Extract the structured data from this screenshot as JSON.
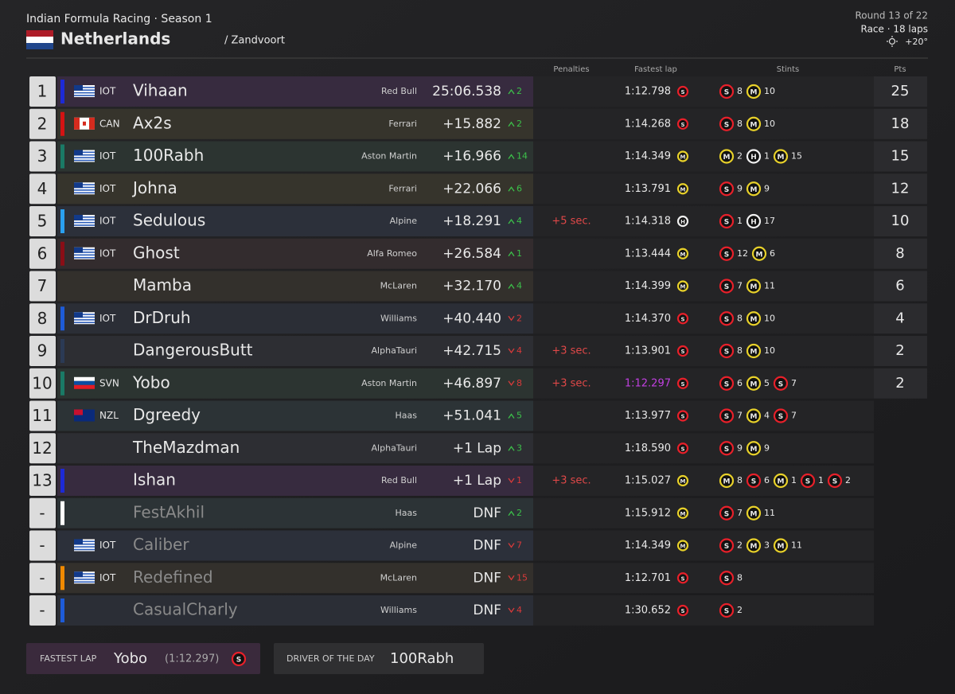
{
  "header": {
    "title": "Indian Formula Racing · Season 1",
    "country": "Netherlands",
    "circuit": "/ Zandvoort",
    "round": "Round 13 of 22",
    "session": "Race · 18 laps",
    "weather": "+20°"
  },
  "columns": {
    "penalties": "Penalties",
    "fastest_lap": "Fastest lap",
    "stints": "Stints",
    "points": "Pts"
  },
  "rows": [
    {
      "pos": 1,
      "color": "#1d2ad6",
      "nation": "IOT",
      "driver": "Vihaan",
      "team": "Red Bull",
      "time": "25:06.538",
      "dir": "up",
      "change": 2,
      "fastest_lap": "1:12.798",
      "fastest_tyre": "S",
      "stints": [
        {
          "tyre": "S",
          "laps": 8
        },
        {
          "tyre": "M",
          "laps": 10
        }
      ],
      "pts": 25
    },
    {
      "pos": 2,
      "color": "#d41313",
      "nation": "CAN",
      "driver": "Ax2s",
      "team": "Ferrari",
      "time": "+15.882",
      "dir": "up",
      "change": 2,
      "fastest_lap": "1:14.268",
      "fastest_tyre": "S",
      "stints": [
        {
          "tyre": "S",
          "laps": 8
        },
        {
          "tyre": "M",
          "laps": 10
        }
      ],
      "pts": 18
    },
    {
      "pos": 3,
      "color": "#1a7a66",
      "nation": "IOT",
      "driver": "100Rabh",
      "team": "Aston Martin",
      "time": "+16.966",
      "dir": "up",
      "change": 14,
      "fastest_lap": "1:14.349",
      "fastest_tyre": "M",
      "stints": [
        {
          "tyre": "M",
          "laps": 2
        },
        {
          "tyre": "H",
          "laps": 1
        },
        {
          "tyre": "M",
          "laps": 15
        }
      ],
      "pts": 15
    },
    {
      "pos": 4,
      "nation": "IOT",
      "driver": "Johna",
      "team": "Ferrari",
      "time": "+22.066",
      "dir": "up",
      "change": 6,
      "fastest_lap": "1:13.791",
      "fastest_tyre": "M",
      "stints": [
        {
          "tyre": "S",
          "laps": 9
        },
        {
          "tyre": "M",
          "laps": 9
        }
      ],
      "pts": 12
    },
    {
      "pos": 5,
      "color": "#2aa0f0",
      "nation": "IOT",
      "driver": "Sedulous",
      "team": "Alpine",
      "time": "+18.291",
      "dir": "up",
      "change": 4,
      "penalty": "+5 sec.",
      "fastest_lap": "1:14.318",
      "fastest_tyre": "H",
      "stints": [
        {
          "tyre": "S",
          "laps": 1
        },
        {
          "tyre": "H",
          "laps": 17
        }
      ],
      "pts": 10
    },
    {
      "pos": 6,
      "color": "#8a0e16",
      "nation": "IOT",
      "driver": "Ghost",
      "team": "Alfa Romeo",
      "time": "+26.584",
      "dir": "up",
      "change": 1,
      "fastest_lap": "1:13.444",
      "fastest_tyre": "M",
      "stints": [
        {
          "tyre": "S",
          "laps": 12
        },
        {
          "tyre": "M",
          "laps": 6
        }
      ],
      "pts": 8
    },
    {
      "pos": 7,
      "driver": "Mamba",
      "team": "McLaren",
      "time": "+32.170",
      "dir": "up",
      "change": 4,
      "fastest_lap": "1:14.399",
      "fastest_tyre": "M",
      "stints": [
        {
          "tyre": "S",
          "laps": 7
        },
        {
          "tyre": "M",
          "laps": 11
        }
      ],
      "pts": 6
    },
    {
      "pos": 8,
      "color": "#1e5bd8",
      "nation": "IOT",
      "driver": "DrDruh",
      "team": "Williams",
      "time": "+40.440",
      "dir": "down",
      "change": 2,
      "fastest_lap": "1:14.370",
      "fastest_tyre": "S",
      "stints": [
        {
          "tyre": "S",
          "laps": 8
        },
        {
          "tyre": "M",
          "laps": 10
        }
      ],
      "pts": 4
    },
    {
      "pos": 9,
      "color": "#2b3a55",
      "driver": "DangerousButt",
      "team": "AlphaTauri",
      "time": "+42.715",
      "dir": "down",
      "change": 4,
      "penalty": "+3 sec.",
      "fastest_lap": "1:13.901",
      "fastest_tyre": "S",
      "stints": [
        {
          "tyre": "S",
          "laps": 8
        },
        {
          "tyre": "M",
          "laps": 10
        }
      ],
      "pts": 2
    },
    {
      "pos": 10,
      "color": "#1a7a66",
      "nation": "SVN",
      "driver": "Yobo",
      "team": "Aston Martin",
      "time": "+46.897",
      "dir": "down",
      "change": 8,
      "penalty": "+3 sec.",
      "fastest_lap": "1:12.297",
      "fastest_tyre": "S",
      "overall_fastest": true,
      "stints": [
        {
          "tyre": "S",
          "laps": 6
        },
        {
          "tyre": "M",
          "laps": 5
        },
        {
          "tyre": "S",
          "laps": 7
        }
      ],
      "pts": 2
    },
    {
      "pos": 11,
      "nation": "NZL",
      "driver": "Dgreedy",
      "team": "Haas",
      "time": "+51.041",
      "dir": "up",
      "change": 5,
      "fastest_lap": "1:13.977",
      "fastest_tyre": "S",
      "stints": [
        {
          "tyre": "S",
          "laps": 7
        },
        {
          "tyre": "M",
          "laps": 4
        },
        {
          "tyre": "S",
          "laps": 7
        }
      ]
    },
    {
      "pos": 12,
      "driver": "TheMazdman",
      "team": "AlphaTauri",
      "time": "+1 Lap",
      "dir": "up",
      "change": 3,
      "fastest_lap": "1:18.590",
      "fastest_tyre": "S",
      "stints": [
        {
          "tyre": "S",
          "laps": 9
        },
        {
          "tyre": "M",
          "laps": 9
        }
      ]
    },
    {
      "pos": 13,
      "color": "#1d2ad6",
      "driver": "Ishan",
      "team": "Red Bull",
      "time": "+1 Lap",
      "dir": "down",
      "change": 1,
      "penalty": "+3 sec.",
      "fastest_lap": "1:15.027",
      "fastest_tyre": "M",
      "stints": [
        {
          "tyre": "M",
          "laps": 8
        },
        {
          "tyre": "S",
          "laps": 6
        },
        {
          "tyre": "M",
          "laps": 1
        },
        {
          "tyre": "S",
          "laps": 1
        },
        {
          "tyre": "S",
          "laps": 2
        }
      ]
    },
    {
      "pos": "-",
      "color": "#ffffff",
      "retired": true,
      "driver": "FestAkhil",
      "team": "Haas",
      "time": "DNF",
      "dir": "up",
      "change": 2,
      "fastest_lap": "1:15.912",
      "fastest_tyre": "M",
      "stints": [
        {
          "tyre": "S",
          "laps": 7
        },
        {
          "tyre": "M",
          "laps": 11
        }
      ]
    },
    {
      "pos": "-",
      "retired": true,
      "nation": "IOT",
      "driver": "Caliber",
      "team": "Alpine",
      "time": "DNF",
      "dir": "down",
      "change": 7,
      "fastest_lap": "1:14.349",
      "fastest_tyre": "M",
      "stints": [
        {
          "tyre": "S",
          "laps": 2
        },
        {
          "tyre": "M",
          "laps": 3
        },
        {
          "tyre": "M",
          "laps": 11
        }
      ]
    },
    {
      "pos": "-",
      "color": "#f08a00",
      "retired": true,
      "nation": "IOT",
      "driver": "Redefined",
      "team": "McLaren",
      "time": "DNF",
      "dir": "down",
      "change": 15,
      "fastest_lap": "1:12.701",
      "fastest_tyre": "S",
      "stints": [
        {
          "tyre": "S",
          "laps": 8
        }
      ]
    },
    {
      "pos": "-",
      "color": "#1e5bd8",
      "retired": true,
      "driver": "CasualCharly",
      "team": "Williams",
      "time": "DNF",
      "dir": "down",
      "change": 4,
      "fastest_lap": "1:30.652",
      "fastest_tyre": "S",
      "stints": [
        {
          "tyre": "S",
          "laps": 2
        }
      ]
    }
  ],
  "footer": {
    "fastest_label": "FASTEST LAP",
    "fastest_driver": "Yobo",
    "fastest_time": "(1:12.297)",
    "fastest_tyre": "S",
    "dotd_label": "DRIVER OF THE DAY",
    "dotd_driver": "100Rabh"
  }
}
